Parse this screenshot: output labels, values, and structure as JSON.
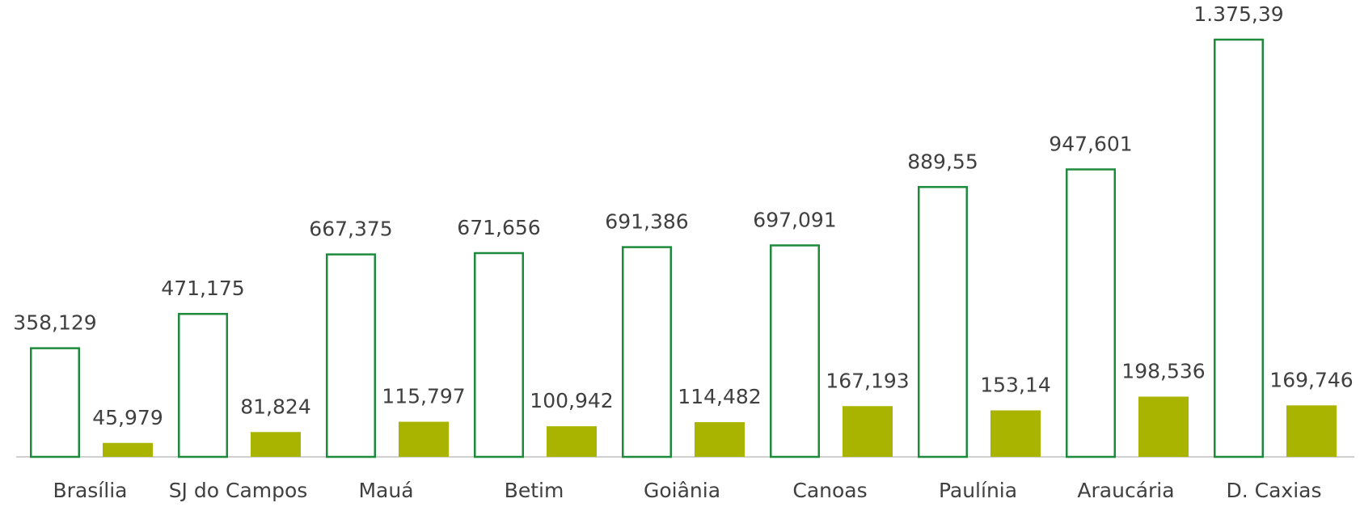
{
  "chart_data": {
    "type": "bar",
    "categories": [
      "Brasília",
      "SJ do Campos",
      "Mauá",
      "Betim",
      "Goiânia",
      "Canoas",
      "Paulínia",
      "Araucária",
      "D. Caxias"
    ],
    "series": [
      {
        "color": "#1e8b3c",
        "style": "outline",
        "values": [
          358.129,
          471.175,
          667.375,
          671.656,
          691.386,
          697.091,
          889.55,
          947.601,
          1375.39
        ],
        "value_labels": [
          "358,129",
          "471,175",
          "667,375",
          "671,656",
          "691,386",
          "697,091",
          "889,55",
          "947,601",
          "1.375,39"
        ]
      },
      {
        "color": "#a8b400",
        "style": "solid",
        "values": [
          45.979,
          81.824,
          115.797,
          100.942,
          114.482,
          167.193,
          153.14,
          198.536,
          169.746
        ],
        "value_labels": [
          "45,979",
          "81,824",
          "115,797",
          "100,942",
          "114,482",
          "167,193",
          "153,14",
          "198,536",
          "169,746"
        ]
      }
    ]
  }
}
